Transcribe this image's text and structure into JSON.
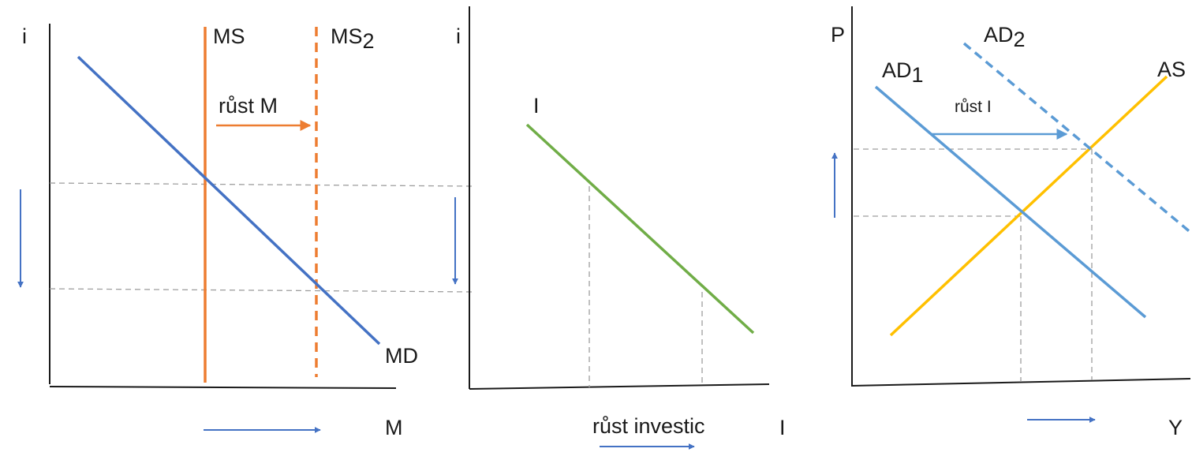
{
  "panel_money": {
    "y_axis_label": "i",
    "x_axis_label": "M",
    "ms_label": "MS",
    "ms2_label": {
      "main": "MS",
      "sub": "2"
    },
    "md_label": "MD",
    "shift_label": "růst M",
    "colors": {
      "ms": "#ed7d31",
      "md": "#4472c4"
    }
  },
  "panel_investment": {
    "y_axis_label": "i",
    "x_axis_label": "I",
    "curve_label": "I",
    "shift_label": "růst investic",
    "colors": {
      "investment": "#70ad47"
    }
  },
  "panel_ad_as": {
    "y_axis_label": "P",
    "x_axis_label": "Y",
    "ad1_label": {
      "main": "AD",
      "sub": "1"
    },
    "ad2_label": {
      "main": "AD",
      "sub": "2"
    },
    "as_label": "AS",
    "shift_label": "růst I",
    "colors": {
      "ad": "#5b9bd5",
      "as": "#ffc000",
      "arrows": "#4472c4"
    }
  }
}
